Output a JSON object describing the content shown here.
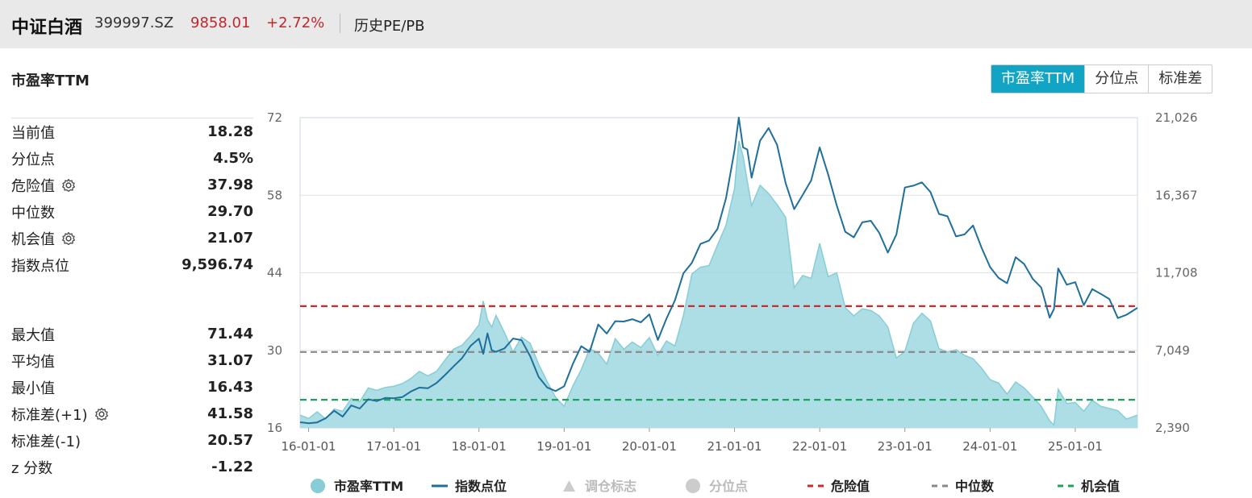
{
  "header": {
    "name": "中证白酒",
    "code": "399997.SZ",
    "price": "9858.01",
    "change": "+2.72%",
    "tab": "历史PE/PB"
  },
  "section_title": "市盈率TTM",
  "toggle": {
    "buttons": [
      "市盈率TTM",
      "分位点",
      "标准差"
    ],
    "active": "市盈率TTM"
  },
  "stats1": [
    {
      "label": "当前值",
      "value": "18.28",
      "gear": false
    },
    {
      "label": "分位点",
      "value": "4.5%",
      "gear": false
    },
    {
      "label": "危险值",
      "value": "37.98",
      "gear": true
    },
    {
      "label": "中位数",
      "value": "29.70",
      "gear": false
    },
    {
      "label": "机会值",
      "value": "21.07",
      "gear": true
    },
    {
      "label": "指数点位",
      "value": "9,596.74",
      "gear": false
    }
  ],
  "stats2": [
    {
      "label": "最大值",
      "value": "71.44",
      "gear": false
    },
    {
      "label": "平均值",
      "value": "31.07",
      "gear": false
    },
    {
      "label": "最小值",
      "value": "16.43",
      "gear": false
    },
    {
      "label": "标准差(+1)",
      "value": "41.58",
      "gear": true
    },
    {
      "label": "标准差(-1)",
      "value": "20.57",
      "gear": false
    },
    {
      "label": "z 分数",
      "value": "-1.22",
      "gear": false
    }
  ],
  "colors": {
    "pe_fill": "#9fd8e0",
    "pe_line": "#86cdd6",
    "index_line": "#1f6f9c",
    "danger": "#cc2b2b",
    "median": "#888888",
    "opportunity": "#1aa35a",
    "accent": "#11a4c4"
  },
  "chart_data": {
    "type": "area",
    "x_ticks": [
      "16-01-01",
      "17-01-01",
      "18-01-01",
      "19-01-01",
      "20-01-01",
      "21-01-01",
      "22-01-01",
      "23-01-01",
      "24-01-01",
      "25-01-01"
    ],
    "y_left": {
      "ticks": [
        16,
        30,
        44,
        58,
        72
      ],
      "range": [
        16,
        72
      ]
    },
    "y_right": {
      "ticks": [
        "2,390",
        "7,049",
        "11,708",
        "16,367",
        "21,026"
      ],
      "values": [
        2390,
        7049,
        11708,
        16367,
        21026
      ],
      "range": [
        2390,
        21026
      ]
    },
    "x_range": [
      2015.9,
      2025.73
    ],
    "series": [
      {
        "name": "市盈率TTM",
        "axis": "left",
        "points": [
          [
            2015.9,
            18.3
          ],
          [
            2016.0,
            17.7
          ],
          [
            2016.1,
            18.9
          ],
          [
            2016.2,
            17.6
          ],
          [
            2016.3,
            19.4
          ],
          [
            2016.4,
            19.0
          ],
          [
            2016.5,
            21.3
          ],
          [
            2016.6,
            20.7
          ],
          [
            2016.7,
            23.2
          ],
          [
            2016.8,
            22.8
          ],
          [
            2016.9,
            23.3
          ],
          [
            2017.0,
            23.5
          ],
          [
            2017.1,
            24.0
          ],
          [
            2017.2,
            24.9
          ],
          [
            2017.3,
            26.2
          ],
          [
            2017.4,
            25.4
          ],
          [
            2017.5,
            26.2
          ],
          [
            2017.6,
            28.2
          ],
          [
            2017.7,
            30.2
          ],
          [
            2017.8,
            30.9
          ],
          [
            2017.9,
            32.6
          ],
          [
            2018.0,
            34.6
          ],
          [
            2018.05,
            38.9
          ],
          [
            2018.1,
            35.5
          ],
          [
            2018.15,
            34.2
          ],
          [
            2018.2,
            36.3
          ],
          [
            2018.3,
            33.2
          ],
          [
            2018.4,
            29.7
          ],
          [
            2018.5,
            32.4
          ],
          [
            2018.6,
            31.3
          ],
          [
            2018.7,
            27.5
          ],
          [
            2018.8,
            24.4
          ],
          [
            2018.9,
            21.5
          ],
          [
            2019.0,
            19.9
          ],
          [
            2019.1,
            23.5
          ],
          [
            2019.2,
            26.5
          ],
          [
            2019.3,
            30.3
          ],
          [
            2019.4,
            29.5
          ],
          [
            2019.5,
            27.5
          ],
          [
            2019.6,
            32.1
          ],
          [
            2019.7,
            30.2
          ],
          [
            2019.8,
            31.5
          ],
          [
            2019.9,
            30.5
          ],
          [
            2020.0,
            32.3
          ],
          [
            2020.1,
            29.1
          ],
          [
            2020.2,
            31.7
          ],
          [
            2020.3,
            30.8
          ],
          [
            2020.4,
            36.3
          ],
          [
            2020.5,
            43.8
          ],
          [
            2020.6,
            45.0
          ],
          [
            2020.7,
            45.3
          ],
          [
            2020.8,
            49.0
          ],
          [
            2020.9,
            52.6
          ],
          [
            2021.0,
            59.2
          ],
          [
            2021.05,
            67.8
          ],
          [
            2021.1,
            65.1
          ],
          [
            2021.15,
            60.5
          ],
          [
            2021.2,
            56.1
          ],
          [
            2021.3,
            59.8
          ],
          [
            2021.4,
            58.3
          ],
          [
            2021.5,
            56.3
          ],
          [
            2021.6,
            54.0
          ],
          [
            2021.7,
            41.3
          ],
          [
            2021.8,
            43.5
          ],
          [
            2021.9,
            43.0
          ],
          [
            2022.0,
            49.3
          ],
          [
            2022.1,
            43.3
          ],
          [
            2022.2,
            44.0
          ],
          [
            2022.3,
            37.7
          ],
          [
            2022.4,
            36.2
          ],
          [
            2022.5,
            37.5
          ],
          [
            2022.6,
            37.2
          ],
          [
            2022.7,
            36.2
          ],
          [
            2022.8,
            34.2
          ],
          [
            2022.9,
            28.6
          ],
          [
            2023.0,
            29.8
          ],
          [
            2023.1,
            34.9
          ],
          [
            2023.2,
            36.7
          ],
          [
            2023.3,
            35.3
          ],
          [
            2023.4,
            30.3
          ],
          [
            2023.5,
            29.7
          ],
          [
            2023.6,
            30.1
          ],
          [
            2023.7,
            29.1
          ],
          [
            2023.8,
            28.5
          ],
          [
            2023.9,
            26.8
          ],
          [
            2024.0,
            24.7
          ],
          [
            2024.1,
            24.1
          ],
          [
            2024.2,
            22.1
          ],
          [
            2024.3,
            24.3
          ],
          [
            2024.4,
            23.2
          ],
          [
            2024.5,
            21.6
          ],
          [
            2024.6,
            19.9
          ],
          [
            2024.7,
            17.3
          ],
          [
            2024.75,
            16.5
          ],
          [
            2024.8,
            23.0
          ],
          [
            2024.9,
            20.4
          ],
          [
            2025.0,
            20.6
          ],
          [
            2025.1,
            19.0
          ],
          [
            2025.2,
            21.0
          ],
          [
            2025.3,
            19.9
          ],
          [
            2025.4,
            19.5
          ],
          [
            2025.5,
            19.1
          ],
          [
            2025.6,
            17.6
          ],
          [
            2025.73,
            18.3
          ]
        ]
      },
      {
        "name": "指数点位",
        "axis": "right",
        "points": [
          [
            2015.9,
            2730
          ],
          [
            2016.0,
            2670
          ],
          [
            2016.1,
            2720
          ],
          [
            2016.2,
            2970
          ],
          [
            2016.3,
            3420
          ],
          [
            2016.4,
            3070
          ],
          [
            2016.5,
            3740
          ],
          [
            2016.6,
            3550
          ],
          [
            2016.7,
            4110
          ],
          [
            2016.8,
            4000
          ],
          [
            2016.9,
            4190
          ],
          [
            2017.0,
            4170
          ],
          [
            2017.1,
            4240
          ],
          [
            2017.2,
            4580
          ],
          [
            2017.3,
            4810
          ],
          [
            2017.4,
            4770
          ],
          [
            2017.5,
            5080
          ],
          [
            2017.6,
            5560
          ],
          [
            2017.7,
            6080
          ],
          [
            2017.8,
            6570
          ],
          [
            2017.9,
            7310
          ],
          [
            2018.0,
            7750
          ],
          [
            2018.05,
            6840
          ],
          [
            2018.1,
            8070
          ],
          [
            2018.15,
            7050
          ],
          [
            2018.2,
            6960
          ],
          [
            2018.3,
            7170
          ],
          [
            2018.4,
            7760
          ],
          [
            2018.5,
            7660
          ],
          [
            2018.6,
            6710
          ],
          [
            2018.7,
            5450
          ],
          [
            2018.8,
            4820
          ],
          [
            2018.9,
            4600
          ],
          [
            2019.0,
            4890
          ],
          [
            2019.1,
            6210
          ],
          [
            2019.2,
            7300
          ],
          [
            2019.3,
            6970
          ],
          [
            2019.4,
            8600
          ],
          [
            2019.5,
            8060
          ],
          [
            2019.6,
            8800
          ],
          [
            2019.7,
            8780
          ],
          [
            2019.8,
            8920
          ],
          [
            2019.9,
            8730
          ],
          [
            2020.0,
            9210
          ],
          [
            2020.1,
            7670
          ],
          [
            2020.2,
            8950
          ],
          [
            2020.3,
            10050
          ],
          [
            2020.4,
            11680
          ],
          [
            2020.5,
            12310
          ],
          [
            2020.6,
            13440
          ],
          [
            2020.7,
            13640
          ],
          [
            2020.8,
            14340
          ],
          [
            2020.9,
            16190
          ],
          [
            2021.0,
            19060
          ],
          [
            2021.05,
            21030
          ],
          [
            2021.1,
            19240
          ],
          [
            2021.15,
            19110
          ],
          [
            2021.2,
            17420
          ],
          [
            2021.3,
            19640
          ],
          [
            2021.4,
            20400
          ],
          [
            2021.5,
            19390
          ],
          [
            2021.6,
            17090
          ],
          [
            2021.7,
            15530
          ],
          [
            2021.8,
            16380
          ],
          [
            2021.9,
            17260
          ],
          [
            2022.0,
            19240
          ],
          [
            2022.1,
            17600
          ],
          [
            2022.2,
            15760
          ],
          [
            2022.3,
            14170
          ],
          [
            2022.4,
            13840
          ],
          [
            2022.5,
            14740
          ],
          [
            2022.6,
            14830
          ],
          [
            2022.7,
            14100
          ],
          [
            2022.8,
            12920
          ],
          [
            2022.9,
            14010
          ],
          [
            2023.0,
            16830
          ],
          [
            2023.1,
            16940
          ],
          [
            2023.2,
            17140
          ],
          [
            2023.3,
            16560
          ],
          [
            2023.4,
            15240
          ],
          [
            2023.5,
            15100
          ],
          [
            2023.6,
            13890
          ],
          [
            2023.7,
            14010
          ],
          [
            2023.8,
            14550
          ],
          [
            2023.9,
            13210
          ],
          [
            2024.0,
            12050
          ],
          [
            2024.1,
            11400
          ],
          [
            2024.2,
            11080
          ],
          [
            2024.3,
            12640
          ],
          [
            2024.4,
            12230
          ],
          [
            2024.5,
            11350
          ],
          [
            2024.6,
            10820
          ],
          [
            2024.7,
            9010
          ],
          [
            2024.75,
            9530
          ],
          [
            2024.8,
            11970
          ],
          [
            2024.9,
            10990
          ],
          [
            2025.0,
            11140
          ],
          [
            2025.1,
            9760
          ],
          [
            2025.2,
            10730
          ],
          [
            2025.3,
            10440
          ],
          [
            2025.4,
            10130
          ],
          [
            2025.5,
            8990
          ],
          [
            2025.6,
            9180
          ],
          [
            2025.73,
            9600
          ]
        ]
      }
    ],
    "reference_lines": [
      {
        "name": "危险值",
        "value": 37.98,
        "color": "#cc2b2b"
      },
      {
        "name": "中位数",
        "value": 29.7,
        "color": "#888888"
      },
      {
        "name": "机会值",
        "value": 21.07,
        "color": "#1aa35a"
      }
    ],
    "legend": {
      "position": "bottom",
      "items": [
        {
          "label": "市盈率TTM",
          "symbol": "circle",
          "color": "#86cdd6",
          "active": true
        },
        {
          "label": "指数点位",
          "symbol": "line",
          "color": "#1f6f9c",
          "active": true
        },
        {
          "label": "调仓标志",
          "symbol": "triangle",
          "color": "#cccccc",
          "active": false
        },
        {
          "label": "分位点",
          "symbol": "circle",
          "color": "#cccccc",
          "active": false
        },
        {
          "label": "危险值",
          "symbol": "dash",
          "color": "#cc2b2b",
          "active": true
        },
        {
          "label": "中位数",
          "symbol": "dash",
          "color": "#888888",
          "active": true
        },
        {
          "label": "机会值",
          "symbol": "dash",
          "color": "#1aa35a",
          "active": true
        }
      ]
    }
  }
}
